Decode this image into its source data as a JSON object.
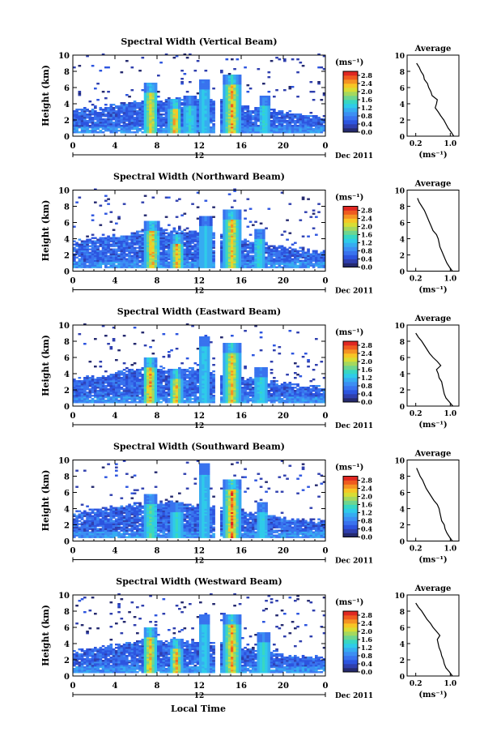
{
  "footer": {
    "xlabel": "Local Time"
  },
  "colors": {
    "scale": [
      "#252a6f",
      "#2f3fae",
      "#2d55df",
      "#3973ee",
      "#3c8ff3",
      "#36acf1",
      "#2fcbe9",
      "#38d7c2",
      "#6ed590",
      "#a5d85e",
      "#d8dd34",
      "#f7c625",
      "#f59323",
      "#ef5b1f",
      "#e02822"
    ],
    "axis": "#000000"
  },
  "chart_data": [
    {
      "type": "heatmap",
      "title": "Spectral Width (Vertical Beam)",
      "ylabel": "Height (km)",
      "xlim": [
        0,
        24
      ],
      "ylim": [
        0,
        10
      ],
      "x_ticks": [
        "0",
        "4",
        "8",
        "12",
        "16",
        "20",
        "0"
      ],
      "y_ticks": [
        "0",
        "2",
        "4",
        "6",
        "8",
        "10"
      ],
      "date_center": "12",
      "date_label": "Dec 2011",
      "colorbar": {
        "unit": "(ms⁻¹)",
        "ticks": [
          "0.0",
          "0.4",
          "0.8",
          "1.2",
          "1.6",
          "2.0",
          "2.4",
          "2.8"
        ],
        "range": [
          0,
          3.0
        ]
      },
      "gaps": [
        [
          13.5,
          14.0
        ]
      ],
      "layer_top": [
        3.2,
        3.3,
        3.4,
        3.6,
        3.8,
        4.0,
        4.2,
        4.3,
        4.4,
        4.5,
        4.6,
        4.6,
        4.5,
        4.4,
        4.2,
        4.0,
        3.8,
        3.5,
        3.3,
        3.1,
        2.9,
        2.7,
        2.5,
        2.4,
        2.3
      ],
      "plumes": [
        {
          "t": 7.3,
          "w": 0.7,
          "top": 6.5,
          "core": 2.5
        },
        {
          "t": 9.6,
          "w": 0.6,
          "top": 4.6,
          "core": 2.9
        },
        {
          "t": 11.0,
          "w": 0.5,
          "top": 5.0,
          "core": 1.5
        },
        {
          "t": 12.3,
          "w": 0.5,
          "top": 7.0,
          "core": 1.4
        },
        {
          "t": 15.0,
          "w": 0.8,
          "top": 7.5,
          "core": 2.7
        },
        {
          "t": 18.1,
          "w": 0.6,
          "top": 5.0,
          "core": 1.6
        }
      ],
      "average": {
        "title": "Average",
        "xlabel": "(ms⁻¹)",
        "x_ticks": [
          "0.2",
          "1.0"
        ],
        "xlim": [
          0,
          1.2
        ],
        "y_ticks": [
          "0",
          "2",
          "4",
          "6",
          "8",
          "10"
        ],
        "heights": [
          0,
          0.5,
          1.0,
          1.5,
          2.0,
          2.5,
          3.0,
          3.5,
          4.0,
          4.5,
          5.0,
          5.5,
          6.0,
          6.5,
          7.0,
          7.5,
          8.0,
          8.5,
          9.0
        ],
        "values": [
          1.08,
          1.02,
          0.95,
          0.9,
          0.85,
          0.78,
          0.72,
          0.65,
          0.68,
          0.7,
          0.58,
          0.55,
          0.5,
          0.47,
          0.4,
          0.38,
          0.32,
          0.28,
          0.22
        ]
      }
    },
    {
      "type": "heatmap",
      "title": "Spectral Width (Northward Beam)",
      "ylabel": "Height (km)",
      "xlim": [
        0,
        24
      ],
      "ylim": [
        0,
        10
      ],
      "x_ticks": [
        "0",
        "4",
        "8",
        "12",
        "16",
        "20",
        "0"
      ],
      "y_ticks": [
        "0",
        "2",
        "4",
        "6",
        "8",
        "10"
      ],
      "date_center": "12",
      "date_label": "Dec 2011",
      "colorbar": {
        "unit": "(ms⁻¹)",
        "ticks": [
          "0.0",
          "0.4",
          "0.8",
          "1.2",
          "1.6",
          "2.0",
          "2.4",
          "2.8"
        ],
        "range": [
          0,
          3.0
        ]
      },
      "gaps": [
        [
          13.6,
          14.0
        ]
      ],
      "layer_top": [
        3.5,
        3.7,
        3.9,
        4.1,
        4.3,
        4.4,
        4.6,
        4.8,
        5.0,
        5.0,
        5.0,
        4.9,
        4.8,
        4.6,
        4.4,
        4.1,
        3.8,
        3.5,
        3.2,
        3.0,
        2.8,
        2.6,
        2.5,
        2.4,
        2.3
      ],
      "plumes": [
        {
          "t": 7.4,
          "w": 0.7,
          "top": 6.2,
          "core": 2.8
        },
        {
          "t": 9.8,
          "w": 0.6,
          "top": 4.6,
          "core": 2.9
        },
        {
          "t": 12.5,
          "w": 0.5,
          "top": 6.8,
          "core": 1.4
        },
        {
          "t": 15.0,
          "w": 0.8,
          "top": 7.5,
          "core": 2.6
        },
        {
          "t": 17.6,
          "w": 0.6,
          "top": 5.2,
          "core": 1.6
        }
      ],
      "average": {
        "title": "Average",
        "xlabel": "(ms⁻¹)",
        "x_ticks": [
          "0.2",
          "1.0"
        ],
        "xlim": [
          0,
          1.2
        ],
        "y_ticks": [
          "0",
          "2",
          "4",
          "6",
          "8",
          "10"
        ],
        "heights": [
          0,
          0.5,
          1.0,
          1.5,
          2.0,
          2.5,
          3.0,
          3.5,
          4.0,
          4.5,
          5.0,
          5.5,
          6.0,
          6.5,
          7.0,
          7.5,
          8.0,
          8.5,
          9.0
        ],
        "values": [
          1.05,
          0.98,
          0.92,
          0.88,
          0.84,
          0.8,
          0.76,
          0.74,
          0.72,
          0.68,
          0.6,
          0.56,
          0.52,
          0.48,
          0.44,
          0.4,
          0.34,
          0.28,
          0.24
        ]
      }
    },
    {
      "type": "heatmap",
      "title": "Spectral Width (Eastward Beam)",
      "ylabel": "Height (km)",
      "xlim": [
        0,
        24
      ],
      "ylim": [
        0,
        10
      ],
      "x_ticks": [
        "0",
        "4",
        "8",
        "12",
        "16",
        "20",
        "0"
      ],
      "y_ticks": [
        "0",
        "2",
        "4",
        "6",
        "8",
        "10"
      ],
      "date_center": "12",
      "date_label": "Dec 2011",
      "colorbar": {
        "unit": "(ms⁻¹)",
        "ticks": [
          "0.0",
          "0.4",
          "0.8",
          "1.2",
          "1.6",
          "2.0",
          "2.4",
          "2.8"
        ],
        "range": [
          0,
          3.0
        ]
      },
      "gaps": [
        [
          13.6,
          14.0
        ]
      ],
      "layer_top": [
        3.2,
        3.4,
        3.6,
        3.8,
        4.0,
        4.2,
        4.4,
        4.5,
        4.6,
        4.6,
        4.5,
        4.4,
        4.3,
        4.1,
        3.9,
        3.7,
        3.5,
        3.3,
        3.1,
        2.9,
        2.7,
        2.5,
        2.4,
        2.3,
        2.2
      ],
      "plumes": [
        {
          "t": 7.2,
          "w": 0.7,
          "top": 6.0,
          "core": 2.8
        },
        {
          "t": 9.7,
          "w": 0.6,
          "top": 4.6,
          "core": 2.8
        },
        {
          "t": 12.4,
          "w": 0.5,
          "top": 8.6,
          "core": 1.4
        },
        {
          "t": 15.0,
          "w": 0.8,
          "top": 7.8,
          "core": 2.6
        },
        {
          "t": 17.8,
          "w": 0.6,
          "top": 4.8,
          "core": 1.5
        }
      ],
      "average": {
        "title": "Average",
        "xlabel": "(ms⁻¹)",
        "x_ticks": [
          "0.2",
          "1.0"
        ],
        "xlim": [
          0,
          1.2
        ],
        "y_ticks": [
          "0",
          "2",
          "4",
          "6",
          "8",
          "10"
        ],
        "heights": [
          0,
          0.5,
          1.0,
          1.5,
          2.0,
          2.5,
          3.0,
          3.5,
          4.0,
          4.5,
          5.0,
          5.5,
          6.0,
          6.5,
          7.0,
          7.5,
          8.0,
          8.5,
          9.0
        ],
        "values": [
          1.06,
          0.98,
          0.9,
          0.86,
          0.84,
          0.82,
          0.8,
          0.74,
          0.72,
          0.68,
          0.78,
          0.7,
          0.6,
          0.52,
          0.46,
          0.4,
          0.34,
          0.26,
          0.2
        ]
      }
    },
    {
      "type": "heatmap",
      "title": "Spectral Width (Southward Beam)",
      "ylabel": "Height (km)",
      "xlim": [
        0,
        24
      ],
      "ylim": [
        0,
        10
      ],
      "x_ticks": [
        "0",
        "4",
        "8",
        "12",
        "16",
        "20",
        "0"
      ],
      "y_ticks": [
        "0",
        "2",
        "4",
        "6",
        "8",
        "10"
      ],
      "date_center": "12",
      "date_label": "Dec 2011",
      "colorbar": {
        "unit": "(ms⁻¹)",
        "ticks": [
          "0.0",
          "0.4",
          "0.8",
          "1.2",
          "1.6",
          "2.0",
          "2.4",
          "2.8"
        ],
        "range": [
          0,
          3.0
        ]
      },
      "gaps": [
        [
          13.5,
          14.0
        ]
      ],
      "layer_top": [
        3.4,
        3.6,
        3.8,
        4.0,
        4.2,
        4.4,
        4.5,
        4.6,
        4.7,
        4.7,
        4.6,
        4.5,
        4.4,
        4.2,
        4.0,
        3.8,
        3.6,
        3.4,
        3.2,
        3.0,
        2.8,
        2.6,
        2.5,
        2.4,
        2.3
      ],
      "plumes": [
        {
          "t": 7.3,
          "w": 0.7,
          "top": 5.8,
          "core": 1.8
        },
        {
          "t": 9.8,
          "w": 0.6,
          "top": 4.8,
          "core": 1.6
        },
        {
          "t": 12.3,
          "w": 0.5,
          "top": 9.4,
          "core": 1.4
        },
        {
          "t": 15.0,
          "w": 0.8,
          "top": 7.5,
          "core": 2.9
        },
        {
          "t": 17.9,
          "w": 0.6,
          "top": 4.8,
          "core": 1.5
        }
      ],
      "average": {
        "title": "Average",
        "xlabel": "(ms⁻¹)",
        "x_ticks": [
          "0.2",
          "1.0"
        ],
        "xlim": [
          0,
          1.2
        ],
        "y_ticks": [
          "0",
          "2",
          "4",
          "6",
          "8",
          "10"
        ],
        "heights": [
          0,
          0.5,
          1.0,
          1.5,
          2.0,
          2.5,
          3.0,
          3.5,
          4.0,
          4.5,
          5.0,
          5.5,
          6.0,
          6.5,
          7.0,
          7.5,
          8.0,
          8.5,
          9.0
        ],
        "values": [
          1.05,
          0.98,
          0.92,
          0.88,
          0.86,
          0.8,
          0.78,
          0.76,
          0.74,
          0.7,
          0.62,
          0.56,
          0.5,
          0.44,
          0.4,
          0.36,
          0.3,
          0.26,
          0.22
        ]
      }
    },
    {
      "type": "heatmap",
      "title": "Spectral Width (Westward Beam)",
      "ylabel": "Height (km)",
      "xlim": [
        0,
        24
      ],
      "ylim": [
        0,
        10
      ],
      "x_ticks": [
        "0",
        "4",
        "8",
        "12",
        "16",
        "20",
        "0"
      ],
      "y_ticks": [
        "0",
        "2",
        "4",
        "6",
        "8",
        "10"
      ],
      "date_center": "12",
      "date_label": "Dec 2011",
      "colorbar": {
        "unit": "(ms⁻¹)",
        "ticks": [
          "0.0",
          "0.4",
          "0.8",
          "1.2",
          "1.6",
          "2.0",
          "2.4",
          "2.8"
        ],
        "range": [
          0,
          3.0
        ]
      },
      "gaps": [
        [
          13.6,
          14.0
        ]
      ],
      "layer_top": [
        3.0,
        3.2,
        3.4,
        3.6,
        3.8,
        4.0,
        4.2,
        4.3,
        4.4,
        4.4,
        4.3,
        4.2,
        4.1,
        4.0,
        3.8,
        3.6,
        3.4,
        3.2,
        3.0,
        2.8,
        2.6,
        2.4,
        2.3,
        2.2,
        2.1
      ],
      "plumes": [
        {
          "t": 7.2,
          "w": 0.7,
          "top": 6.0,
          "core": 2.7
        },
        {
          "t": 9.7,
          "w": 0.6,
          "top": 4.5,
          "core": 2.8
        },
        {
          "t": 12.4,
          "w": 0.5,
          "top": 7.6,
          "core": 1.4
        },
        {
          "t": 15.0,
          "w": 0.8,
          "top": 7.6,
          "core": 2.7
        },
        {
          "t": 18.0,
          "w": 0.6,
          "top": 5.4,
          "core": 1.6
        }
      ],
      "average": {
        "title": "Average",
        "xlabel": "(ms⁻¹)",
        "x_ticks": [
          "0.2",
          "1.0"
        ],
        "xlim": [
          0,
          1.2
        ],
        "y_ticks": [
          "0",
          "2",
          "4",
          "6",
          "8",
          "10"
        ],
        "heights": [
          0,
          0.5,
          1.0,
          1.5,
          2.0,
          2.5,
          3.0,
          3.5,
          4.0,
          4.5,
          5.0,
          5.5,
          6.0,
          6.5,
          7.0,
          7.5,
          8.0,
          8.5,
          9.0
        ],
        "values": [
          1.05,
          0.98,
          0.9,
          0.86,
          0.84,
          0.8,
          0.78,
          0.74,
          0.72,
          0.7,
          0.76,
          0.68,
          0.6,
          0.54,
          0.46,
          0.4,
          0.34,
          0.26,
          0.2
        ]
      }
    }
  ]
}
